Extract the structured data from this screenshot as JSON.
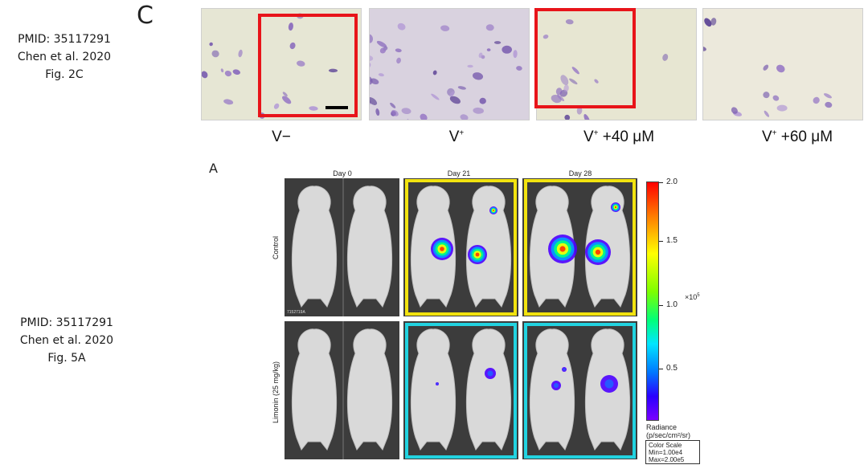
{
  "citations": [
    {
      "lines": [
        "PMID: 35117291",
        "Chen et al. 2020",
        "Fig. 2C"
      ]
    },
    {
      "lines": [
        "PMID: 35117291",
        "Chen et al. 2020",
        "Fig. 5A"
      ]
    }
  ],
  "panel_c": {
    "letter": "C",
    "conditions": [
      {
        "main": "V−",
        "sup": "",
        "rest": ""
      },
      {
        "main": "V",
        "sup": "+",
        "rest": ""
      },
      {
        "main": "V",
        "sup": "+",
        "rest": " +40 μM"
      },
      {
        "main": "V",
        "sup": "+",
        "rest": " +60 μM"
      }
    ]
  },
  "panel_a": {
    "letter": "A",
    "columns": [
      "Day 0",
      "Day 21",
      "Day 28"
    ],
    "rows": [
      "Control",
      "Limonin (25 mg/kg)"
    ],
    "image_id": "7152719A",
    "colorbar": {
      "ticks": [
        "2.0",
        "1.5",
        "1.0",
        "0.5"
      ],
      "exponent_base": "×10",
      "exponent_power": "5",
      "units_line1": "Radiance",
      "units_line2": "(p/sec/cm²/sr)",
      "scale_title": "Color Scale",
      "scale_min": "Min=1.00e4",
      "scale_max": "Max=2.00e5"
    },
    "frame_colors": {
      "control": "#f2e30f",
      "limonin": "#22d3e0"
    }
  }
}
